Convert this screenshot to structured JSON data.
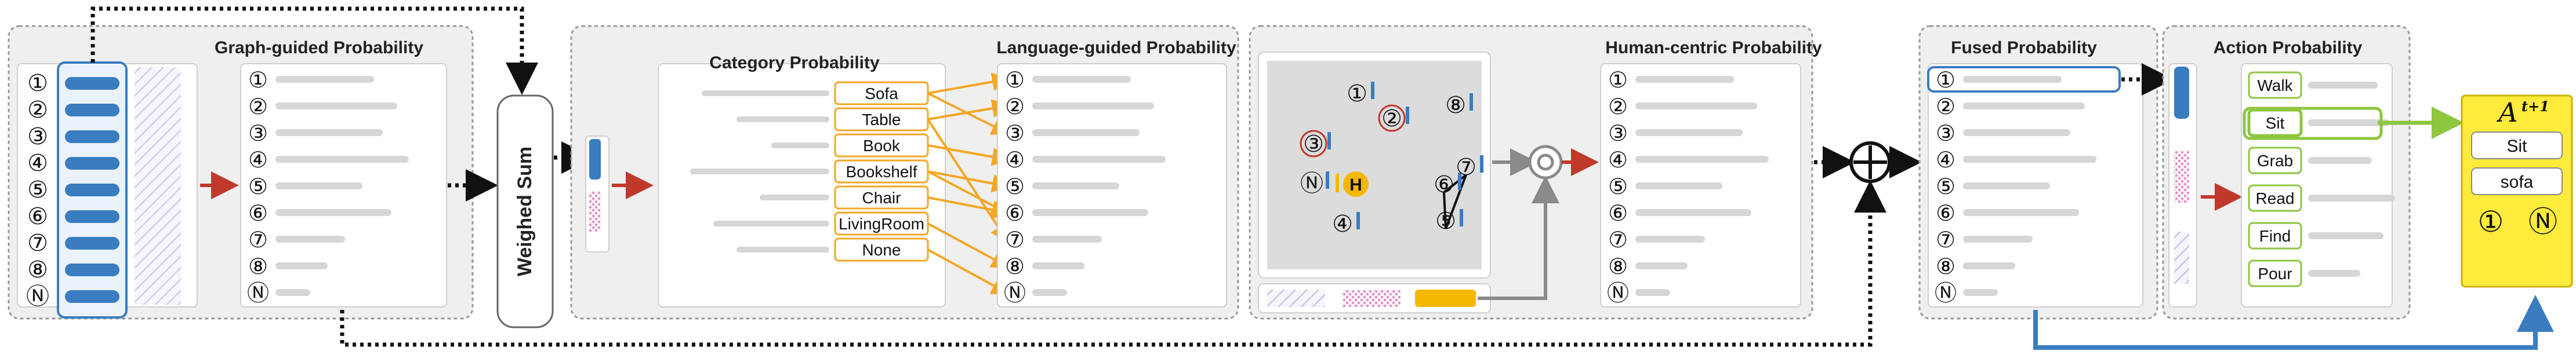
{
  "panels": {
    "graph": {
      "title": "Graph-guided Probability"
    },
    "category": {
      "title": "Category Probability"
    },
    "language": {
      "title": "Language-guided Probability"
    },
    "human": {
      "title": "Human-centric Probability"
    },
    "fused": {
      "title": "Fused Probability"
    },
    "action": {
      "title": "Action Probability"
    }
  },
  "weighted_sum": {
    "label": "Weighed Sum"
  },
  "numerals": [
    "①",
    "②",
    "③",
    "④",
    "⑤",
    "⑥",
    "⑦",
    "⑧",
    "Ⓝ"
  ],
  "categories": [
    "Sofa",
    "Table",
    "Book",
    "Bookshelf",
    "Chair",
    "LivingRoom",
    "None"
  ],
  "actions": [
    "Walk",
    "Sit",
    "Grab",
    "Read",
    "Find",
    "Pour"
  ],
  "scene": {
    "human_label": "H",
    "nodes": [
      "①",
      "②",
      "⑧",
      "③",
      "Ⓝ",
      "⑥",
      "⑦",
      "④",
      "⑤"
    ]
  },
  "output": {
    "symbol": "A",
    "superscript": "t+1",
    "action": "Sit",
    "object": "sofa",
    "ids": [
      "①",
      "Ⓝ"
    ]
  },
  "colors": {
    "blue": "#3a7cc0",
    "red": "#c0392b",
    "orange": "#f5a623",
    "green": "#8dc63f",
    "yellow": "#ffeb3b",
    "gray_bar": "#d6d6d6",
    "panel_border": "#9a9a9a"
  },
  "icons": [
    "plus-circle-icon",
    "ring-node-icon"
  ]
}
